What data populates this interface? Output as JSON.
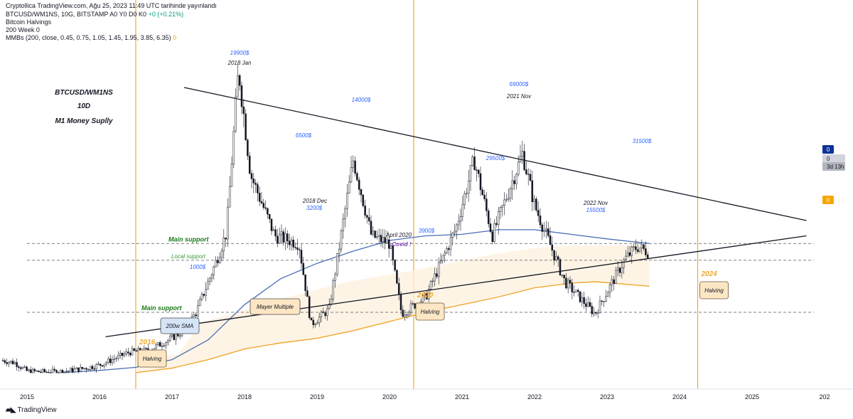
{
  "header": {
    "publisher": "Cryptollica TradingView.com, Ağu 25, 2023 11:49 UTC tarihinde yayınlandı",
    "symbol_line": "BTCUSD/WM1NS, 10G, BITSTAMP  A0  Y0  D0  K0",
    "change": "+0 (+0.21%)",
    "indicator1": "Bitcoin Halvings",
    "indicator2": "200 Week  0",
    "indicator3": "MMBs (200, close, 0.45, 0.75, 1.05, 1.45, 1.95, 3.85, 6.35)",
    "indicator3_value": "0"
  },
  "footer": {
    "logo_icon": "tradingview-logo-icon",
    "brand": "TradingView"
  },
  "colors": {
    "up": "#ffffff",
    "down": "#131722",
    "sma": "#4a6fb5",
    "mayer": "#f0a830",
    "band": "#fdf0dc",
    "halving": "#f0a830",
    "blue_text": "#2962ff",
    "green_text": "#1b7a1b",
    "purple_text": "#7b3fb0",
    "badge_blue": "#0c3299",
    "badge_orange": "#f7a600",
    "badge_gray": "#b2b5be"
  },
  "chart_data": {
    "type": "candlestick",
    "x_ticks": [
      "2015",
      "2016",
      "2017",
      "2018",
      "2019",
      "2020",
      "2021",
      "2022",
      "2023",
      "2024",
      "2025",
      "202"
    ],
    "price_path": [
      [
        "2014-09",
        0.85
      ],
      [
        "2014-11",
        0.7
      ],
      [
        "2015-01",
        0.15
      ],
      [
        "2015-04",
        0.1
      ],
      [
        "2015-07",
        0.13
      ],
      [
        "2015-10",
        0.3
      ],
      [
        "2016-01",
        0.55
      ],
      [
        "2016-06",
        1.4
      ],
      [
        "2016-09",
        1.5
      ],
      [
        "2016-12",
        2.1
      ],
      [
        "2017-03",
        2.8
      ],
      [
        "2017-05",
        4.0
      ],
      [
        "2017-08",
        7.0
      ],
      [
        "2017-10",
        9.2
      ],
      [
        "2017-12",
        19.9
      ],
      [
        "2018-02",
        13.0
      ],
      [
        "2018-06",
        9.0
      ],
      [
        "2018-10",
        8.5
      ],
      [
        "2018-12",
        3.2
      ],
      [
        "2019-03",
        4.2
      ],
      [
        "2019-07",
        14.0
      ],
      [
        "2019-10",
        9.0
      ],
      [
        "2020-01",
        8.5
      ],
      [
        "2020-03",
        3.9
      ],
      [
        "2020-07",
        5.0
      ],
      [
        "2020-12",
        9.5
      ],
      [
        "2021-03",
        14.0
      ],
      [
        "2021-06",
        9.0
      ],
      [
        "2021-11",
        14.4
      ],
      [
        "2022-01",
        11.0
      ],
      [
        "2022-06",
        6.0
      ],
      [
        "2022-11",
        3.9
      ],
      [
        "2023-04",
        7.5
      ],
      [
        "2023-06",
        8.3
      ],
      [
        "2023-08",
        7.9
      ]
    ],
    "sma_200w": [
      [
        "2015-07",
        0.05
      ],
      [
        "2016-01",
        0.2
      ],
      [
        "2016-07",
        0.4
      ],
      [
        "2017-01",
        0.9
      ],
      [
        "2017-07",
        2.2
      ],
      [
        "2018-01",
        4.5
      ],
      [
        "2018-07",
        6.2
      ],
      [
        "2019-01",
        7.2
      ],
      [
        "2019-07",
        8.0
      ],
      [
        "2020-01",
        8.7
      ],
      [
        "2020-07",
        9.0
      ],
      [
        "2021-01",
        9.1
      ],
      [
        "2021-07",
        9.4
      ],
      [
        "2022-01",
        9.4
      ],
      [
        "2022-07",
        9.1
      ],
      [
        "2023-01",
        8.8
      ],
      [
        "2023-08",
        8.5
      ]
    ],
    "mayer_multiple": [
      [
        "2016-07",
        0.05
      ],
      [
        "2017-01",
        0.35
      ],
      [
        "2017-07",
        0.9
      ],
      [
        "2018-01",
        1.6
      ],
      [
        "2018-07",
        2.0
      ],
      [
        "2019-01",
        2.3
      ],
      [
        "2019-07",
        2.8
      ],
      [
        "2020-01",
        3.4
      ],
      [
        "2020-07",
        4.0
      ],
      [
        "2021-01",
        4.5
      ],
      [
        "2021-07",
        5.0
      ],
      [
        "2022-01",
        5.6
      ],
      [
        "2022-07",
        5.9
      ],
      [
        "2022-11",
        6.0
      ],
      [
        "2023-08",
        5.7
      ]
    ],
    "trendlines": [
      {
        "from": [
          "2017-03",
          18.7
        ],
        "to": [
          "2025-10",
          10.0
        ]
      },
      {
        "from": [
          "2016-02",
          2.4
        ],
        "to": [
          "2025-10",
          9.0
        ]
      }
    ],
    "support_lines": [
      {
        "label": "Main support",
        "value": 8.5
      },
      {
        "label": "Local support",
        "value": 7.4
      },
      {
        "label": "Main support",
        "value": 4.0
      }
    ],
    "halvings": [
      {
        "date": "2016-07",
        "year": "2016",
        "label": "Halving"
      },
      {
        "date": "2020-05",
        "year": "2020",
        "label": "Halving"
      },
      {
        "date": "2024-04",
        "year": "2024",
        "label": "Halving"
      }
    ],
    "price_annotations": [
      {
        "date": "2017-12",
        "price": "19900$",
        "event": "2018 Jan"
      },
      {
        "date": "2019-06",
        "price": "14000$",
        "event": ""
      },
      {
        "date": "2018-05",
        "price": "6500$",
        "event": ""
      },
      {
        "date": "2018-12",
        "price": "3200$",
        "event": "2018 Dec"
      },
      {
        "date": "2020-03",
        "price": "3900$",
        "event": "April 2020"
      },
      {
        "date": "2021-07",
        "price": "29500$",
        "event": ""
      },
      {
        "date": "2021-11",
        "price": "69000$",
        "event": "2021 Nov"
      },
      {
        "date": "2022-11",
        "price": "15500$",
        "event": "2022 Nov"
      },
      {
        "date": "2023-06",
        "price": "31500$",
        "event": ""
      },
      {
        "date": "2017-03",
        "price": "1000$",
        "event": ""
      }
    ],
    "title_lines": [
      "BTCUSD/WM1NS",
      "10D",
      "M1 Money Suplly"
    ],
    "covid_label": "Covid !",
    "callouts": [
      "200w SMA",
      "Mayer Multiple"
    ],
    "badges": [
      "0",
      "0",
      "3d 13h",
      "0"
    ]
  }
}
